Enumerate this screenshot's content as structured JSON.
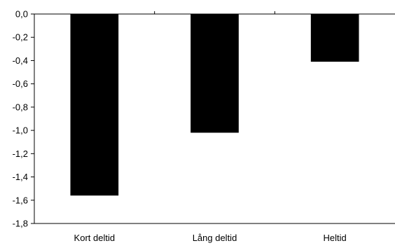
{
  "chart_data": {
    "type": "bar",
    "title": "",
    "xlabel": "",
    "ylabel": "",
    "categories": [
      "Kort deltid",
      "Lång deltid",
      "Heltid"
    ],
    "values": [
      -1.56,
      -1.02,
      -0.41
    ],
    "ylim": [
      -1.8,
      0.0
    ],
    "yticks": [
      0.0,
      -0.2,
      -0.4,
      -0.6,
      -0.8,
      -1.0,
      -1.2,
      -1.4,
      -1.6,
      -1.8
    ],
    "ytick_labels": [
      "0,0",
      "-0,2",
      "-0,4",
      "-0,6",
      "-0,8",
      "-1,0",
      "-1,2",
      "-1,4",
      "-1,6",
      "-1,8"
    ],
    "grid": false,
    "legend": "none",
    "bar_color": "#000000",
    "axis_color": "#000000"
  }
}
